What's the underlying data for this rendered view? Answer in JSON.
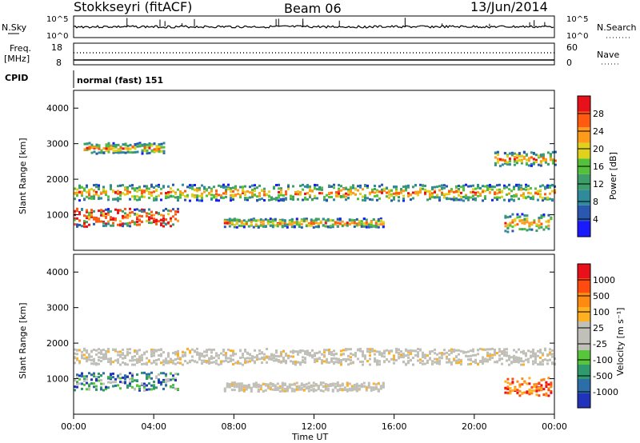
{
  "header": {
    "station": "Stokkseyri (fitACF)",
    "beam": "Beam 06",
    "date": "13/Jun/2014"
  },
  "noise_panel": {
    "left_label": "N.Sky",
    "right_label": "N.Search",
    "left_ticks": [
      "10^5",
      "10^0"
    ],
    "right_ticks": [
      "10^5",
      "10^0"
    ]
  },
  "freq_panel": {
    "left_label": "Freq.",
    "left_unit": "[MHz]",
    "right_label": "Nave",
    "left_ticks": [
      "18",
      "8"
    ],
    "right_ticks": [
      "60",
      "0"
    ]
  },
  "cpid": {
    "label": "CPID",
    "value": "normal (fast) 151"
  },
  "colors": {
    "power_scale": [
      "#1a1aff",
      "#2a57b0",
      "#2f8a9a",
      "#3d9e6a",
      "#55c03a",
      "#e0d21a",
      "#ff9a1a",
      "#ff5a10",
      "#e8101a"
    ],
    "velocity_scale": [
      "#2233bb",
      "#2e6ea8",
      "#2f9a6e",
      "#58c63a",
      "#c0c0b8",
      "#c0c0b8",
      "#ffb020",
      "#ff8a10",
      "#ff4a10",
      "#e8101a"
    ]
  },
  "chart_data": [
    {
      "type": "heatmap",
      "panel": "power",
      "ylabel": "Slant Range [km]",
      "ylim": [
        0,
        4500
      ],
      "yticks": [
        "1000",
        "2000",
        "3000",
        "4000"
      ],
      "x": [
        "00:00",
        "04:00",
        "08:00",
        "12:00",
        "16:00",
        "20:00",
        "00:00"
      ],
      "colorbar_label": "Power [dB]",
      "colorbar_ticks": [
        "4",
        "8",
        "12",
        "16",
        "20",
        "24",
        "28"
      ],
      "echo_bands_km": [
        {
          "from_hr": 0.0,
          "to_hr": 24.0,
          "center_km": 1650,
          "width_km": 450
        },
        {
          "from_hr": 0.0,
          "to_hr": 5.2,
          "center_km": 950,
          "width_km": 500
        },
        {
          "from_hr": 7.5,
          "to_hr": 15.5,
          "center_km": 800,
          "width_km": 250
        },
        {
          "from_hr": 0.5,
          "to_hr": 4.5,
          "center_km": 2900,
          "width_km": 300
        },
        {
          "from_hr": 21.0,
          "to_hr": 24.0,
          "center_km": 2600,
          "width_km": 400
        },
        {
          "from_hr": 21.5,
          "to_hr": 23.8,
          "center_km": 800,
          "width_km": 500
        }
      ]
    },
    {
      "type": "heatmap",
      "panel": "velocity",
      "ylabel": "Slant Range [km]",
      "ylim": [
        0,
        4500
      ],
      "yticks": [
        "1000",
        "2000",
        "3000",
        "4000"
      ],
      "x": [
        "00:00",
        "04:00",
        "08:00",
        "12:00",
        "16:00",
        "20:00",
        "00:00"
      ],
      "xlabel": "Time UT",
      "colorbar_label": "Velocity [m s⁻¹]",
      "colorbar_ticks": [
        "1000",
        "500",
        "100",
        "25",
        "-25",
        "-100",
        "-500",
        "-1000"
      ],
      "echo_bands_km": [
        {
          "from_hr": 0.0,
          "to_hr": 24.0,
          "center_km": 1650,
          "width_km": 450
        },
        {
          "from_hr": 0.0,
          "to_hr": 5.2,
          "center_km": 950,
          "width_km": 500
        },
        {
          "from_hr": 7.5,
          "to_hr": 15.5,
          "center_km": 800,
          "width_km": 250
        },
        {
          "from_hr": 21.5,
          "to_hr": 23.8,
          "center_km": 800,
          "width_km": 500
        }
      ]
    }
  ]
}
